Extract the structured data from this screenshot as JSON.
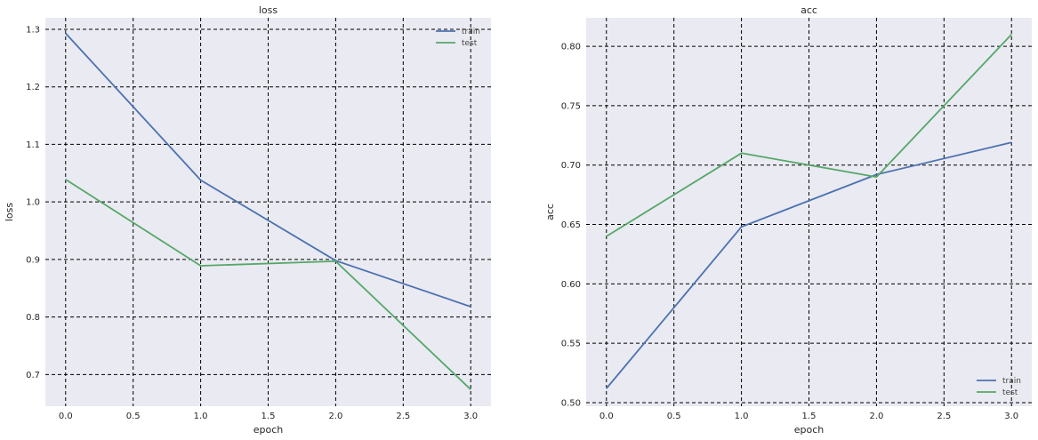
{
  "chart_data": [
    {
      "type": "line",
      "title": "loss",
      "xlabel": "epoch",
      "ylabel": "loss",
      "x": [
        0,
        1,
        2,
        3
      ],
      "xlim": [
        -0.15,
        3.15
      ],
      "ylim": [
        0.645,
        1.32
      ],
      "xticks": [
        0.0,
        0.5,
        1.0,
        1.5,
        2.0,
        2.5,
        3.0
      ],
      "yticks": [
        0.7,
        0.8,
        0.9,
        1.0,
        1.1,
        1.2,
        1.3
      ],
      "ytick_decimals": 1,
      "grid": true,
      "grid_style": "dashed",
      "legend_position": "top-right",
      "series": [
        {
          "name": "train",
          "color": "#4c72b0",
          "values": [
            1.293,
            1.038,
            0.898,
            0.818
          ]
        },
        {
          "name": "test",
          "color": "#55a868",
          "values": [
            1.039,
            0.889,
            0.897,
            0.674
          ]
        }
      ]
    },
    {
      "type": "line",
      "title": "acc",
      "xlabel": "epoch",
      "ylabel": "acc",
      "x": [
        0,
        1,
        2,
        3
      ],
      "xlim": [
        -0.15,
        3.15
      ],
      "ylim": [
        0.497,
        0.824
      ],
      "xticks": [
        0.0,
        0.5,
        1.0,
        1.5,
        2.0,
        2.5,
        3.0
      ],
      "yticks": [
        0.5,
        0.55,
        0.6,
        0.65,
        0.7,
        0.75,
        0.8
      ],
      "ytick_decimals": 2,
      "grid": true,
      "grid_style": "dashed",
      "legend_position": "bottom-right",
      "series": [
        {
          "name": "train",
          "color": "#4c72b0",
          "values": [
            0.512,
            0.648,
            0.692,
            0.719
          ]
        },
        {
          "name": "test",
          "color": "#55a868",
          "values": [
            0.64,
            0.71,
            0.69,
            0.81
          ]
        }
      ]
    }
  ],
  "style": {
    "axes_background": "#eaeaf2",
    "grid_color": "#000000"
  }
}
